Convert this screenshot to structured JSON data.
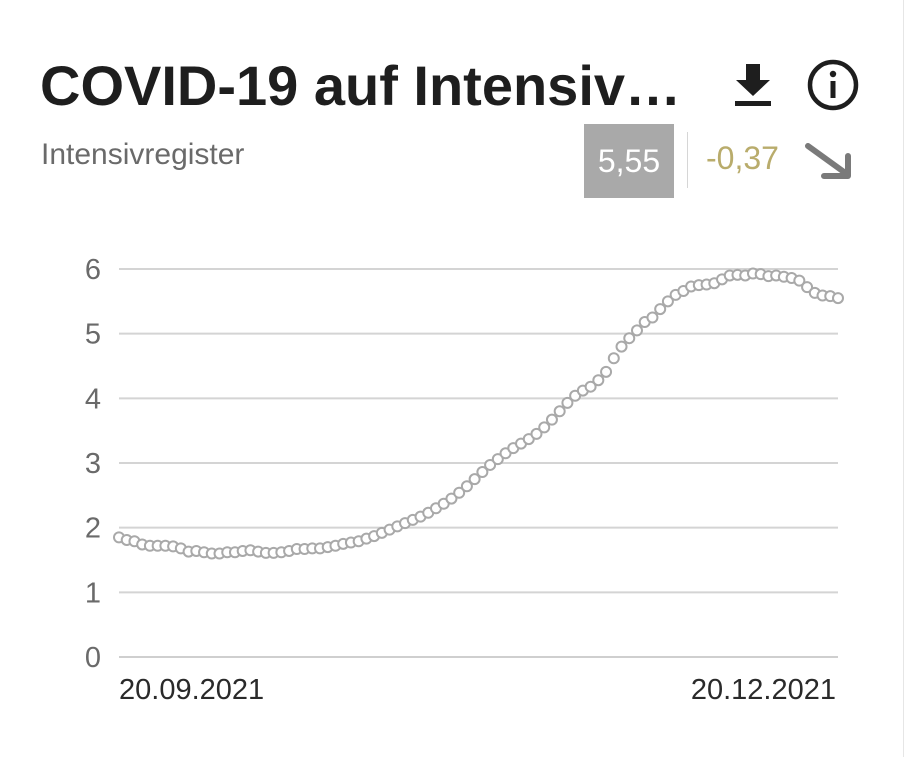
{
  "header": {
    "title": "COVID-19 auf Intensiv…",
    "subtitle": "Intensivregister",
    "download_icon": "download-icon",
    "info_icon": "info-icon"
  },
  "kpi": {
    "value": "5,55",
    "change": "-0,37",
    "trend_icon": "arrow-down-right-icon",
    "badge_color": "#a9a9a9",
    "change_color": "#b9ac6c"
  },
  "chart_data": {
    "type": "line",
    "title": "",
    "xlabel": "",
    "ylabel": "",
    "ylim": [
      0,
      6
    ],
    "yticks": [
      "0",
      "1",
      "2",
      "3",
      "4",
      "5",
      "6"
    ],
    "xticks": [
      "20.09.2021",
      "20.12.2021"
    ],
    "grid": true,
    "marker_style": "hollow-circle",
    "series_color": "#a9a9a9",
    "x_start": "20.09.2021",
    "x_end": "30.12.2021",
    "series": [
      {
        "values": [
          1.85,
          1.81,
          1.79,
          1.74,
          1.72,
          1.72,
          1.72,
          1.71,
          1.68,
          1.63,
          1.64,
          1.62,
          1.6,
          1.6,
          1.62,
          1.62,
          1.64,
          1.65,
          1.63,
          1.61,
          1.61,
          1.62,
          1.64,
          1.67,
          1.67,
          1.68,
          1.68,
          1.7,
          1.72,
          1.75,
          1.77,
          1.79,
          1.83,
          1.87,
          1.92,
          1.97,
          2.02,
          2.07,
          2.12,
          2.17,
          2.23,
          2.3,
          2.37,
          2.45,
          2.54,
          2.64,
          2.75,
          2.86,
          2.97,
          3.06,
          3.15,
          3.23,
          3.3,
          3.37,
          3.45,
          3.55,
          3.67,
          3.8,
          3.93,
          4.04,
          4.12,
          4.18,
          4.28,
          4.41,
          4.62,
          4.8,
          4.93,
          5.05,
          5.18,
          5.25,
          5.38,
          5.5,
          5.6,
          5.66,
          5.73,
          5.75,
          5.76,
          5.78,
          5.84,
          5.9,
          5.91,
          5.9,
          5.93,
          5.92,
          5.89,
          5.9,
          5.88,
          5.86,
          5.82,
          5.72,
          5.63,
          5.59,
          5.58,
          5.55
        ]
      }
    ]
  }
}
